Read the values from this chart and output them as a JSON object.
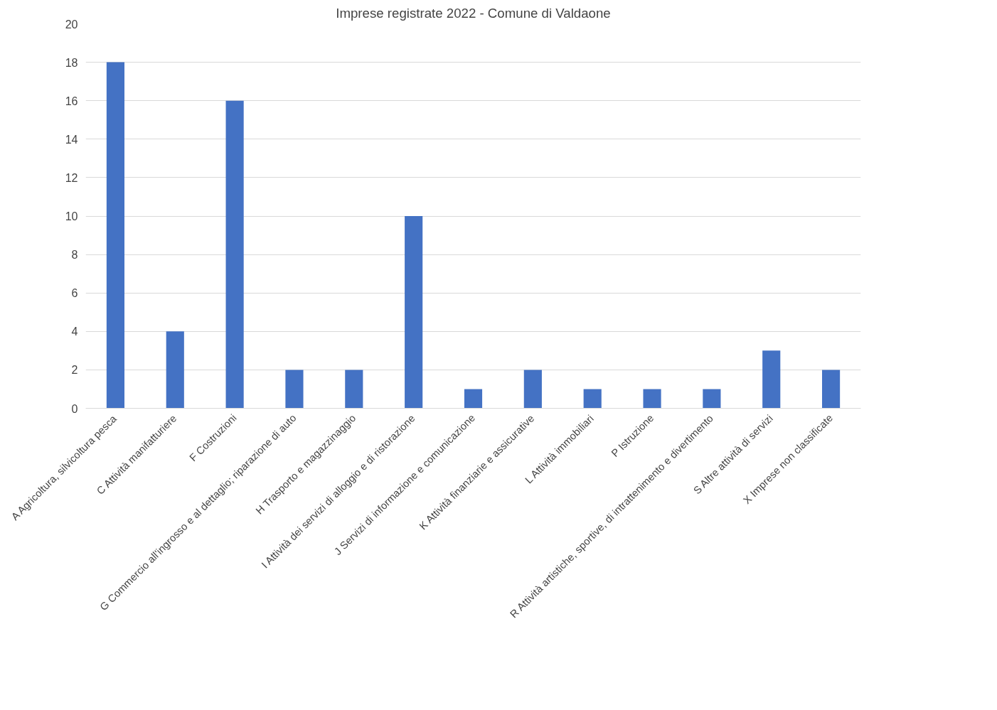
{
  "chart_data": {
    "type": "bar",
    "title": "Imprese registrate 2022 - Comune di Valdaone",
    "categories": [
      "A Agricoltura, silvicoltura pesca",
      "C Attività manifatturiere",
      "F Costruzioni",
      "G Commercio all'ingrosso e al dettaglio; riparazione di auto",
      "H Trasporto e magazzinaggio",
      "I Attività dei servizi di alloggio e di ristorazione",
      "J Servizi di informazione e comunicazione",
      "K Attività finanziarie e assicurative",
      "L Attività immobiliari",
      "P Istruzione",
      "R Attività artistiche, sportive, di intrattenimento e divertimento",
      "S Altre attività di servizi",
      "X Imprese non classificate"
    ],
    "values": [
      18,
      4,
      16,
      2,
      2,
      10,
      1,
      2,
      1,
      1,
      1,
      3,
      2
    ],
    "color": "#4472c4",
    "ylim": [
      0,
      20
    ],
    "yticks": [
      0,
      2,
      4,
      6,
      8,
      10,
      12,
      14,
      16,
      18,
      20
    ],
    "grid": "y"
  }
}
